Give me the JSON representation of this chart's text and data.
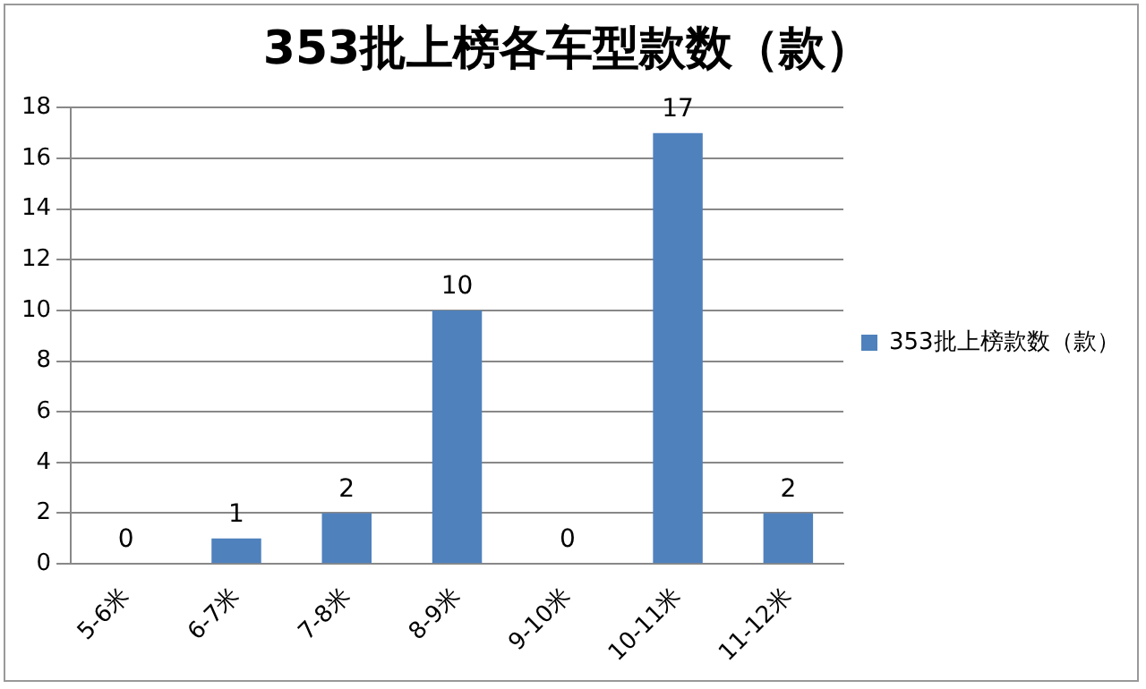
{
  "chart_data": {
    "type": "bar",
    "title": "353批上榜各车型款数（款）",
    "categories": [
      "5-6米",
      "6-7米",
      "7-8米",
      "8-9米",
      "9-10米",
      "10-11米",
      "11-12米"
    ],
    "series": [
      {
        "name": "353批上榜款数（款）",
        "color": "#4f81bd",
        "values": [
          0,
          1,
          2,
          10,
          0,
          17,
          2
        ]
      }
    ],
    "ylim": [
      0,
      18
    ],
    "yticks": [
      0,
      2,
      4,
      6,
      8,
      10,
      12,
      14,
      16,
      18
    ],
    "grid": "y",
    "legend": "right",
    "data_labels": true
  }
}
